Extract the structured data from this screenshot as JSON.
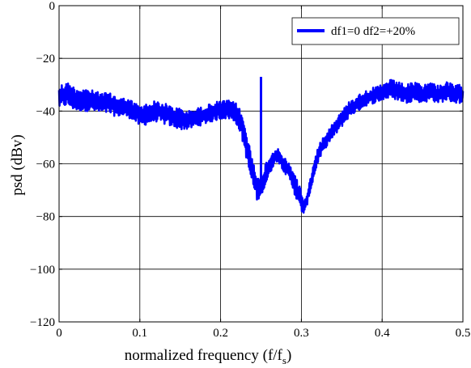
{
  "chart_data": {
    "type": "line",
    "xlabel": "normalized frequency (f/f",
    "xlabel_sub": "s",
    "xlabel_close": ")",
    "ylabel": "psd (dBv)",
    "xlim": [
      0,
      0.5
    ],
    "ylim": [
      -120,
      0
    ],
    "grid": true,
    "legend_position": "top-right",
    "xticks": [
      0,
      0.1,
      0.2,
      0.3,
      0.4,
      0.5
    ],
    "xtick_labels": [
      "0",
      "0.1",
      "0.2",
      "0.3",
      "0.4",
      "0.5"
    ],
    "yticks": [
      0,
      -20,
      -40,
      -60,
      -80,
      -100,
      -120
    ],
    "ytick_labels": [
      "0",
      "−20",
      "−40",
      "−60",
      "−80",
      "−100",
      "−120"
    ],
    "series": [
      {
        "name": "df1=0 df2=+20%",
        "color": "#0000ff",
        "envelope_x": [
          0,
          0.01,
          0.02,
          0.03,
          0.04,
          0.05,
          0.06,
          0.07,
          0.08,
          0.09,
          0.1,
          0.11,
          0.12,
          0.13,
          0.14,
          0.15,
          0.16,
          0.17,
          0.18,
          0.19,
          0.2,
          0.21,
          0.22,
          0.225,
          0.23,
          0.235,
          0.24,
          0.245,
          0.248,
          0.25,
          0.252,
          0.255,
          0.26,
          0.265,
          0.27,
          0.275,
          0.28,
          0.285,
          0.29,
          0.295,
          0.3,
          0.303,
          0.306,
          0.31,
          0.315,
          0.32,
          0.33,
          0.34,
          0.35,
          0.36,
          0.37,
          0.38,
          0.39,
          0.4,
          0.41,
          0.42,
          0.43,
          0.44,
          0.45,
          0.46,
          0.47,
          0.48,
          0.49,
          0.5
        ],
        "envelope_upper": [
          -30,
          -29,
          -31,
          -31,
          -32,
          -33,
          -33,
          -34,
          -35,
          -36,
          -38,
          -37,
          -36,
          -37,
          -38,
          -39,
          -40,
          -39,
          -38,
          -37,
          -36,
          -36,
          -37,
          -40,
          -45,
          -52,
          -58,
          -63,
          -66,
          -68,
          -63,
          -60,
          -57,
          -55,
          -54,
          -56,
          -58,
          -60,
          -62,
          -66,
          -70,
          -74,
          -72,
          -67,
          -60,
          -54,
          -48,
          -44,
          -40,
          -36,
          -34,
          -32,
          -31,
          -30,
          -28,
          -29,
          -30,
          -29,
          -30,
          -29,
          -30,
          -29,
          -30,
          -30
        ],
        "envelope_lower": [
          -39,
          -38,
          -40,
          -40,
          -40,
          -41,
          -41,
          -42,
          -42,
          -43,
          -46,
          -45,
          -44,
          -45,
          -46,
          -47,
          -47,
          -46,
          -45,
          -44,
          -43,
          -43,
          -45,
          -49,
          -55,
          -63,
          -69,
          -74,
          -75,
          -70,
          -71,
          -69,
          -65,
          -61,
          -59,
          -61,
          -64,
          -66,
          -70,
          -75,
          -78,
          -80,
          -77,
          -72,
          -66,
          -60,
          -54,
          -50,
          -46,
          -42,
          -40,
          -38,
          -37,
          -36,
          -35,
          -36,
          -37,
          -36,
          -37,
          -36,
          -37,
          -36,
          -37,
          -37
        ],
        "spike": {
          "x": 0.25,
          "y": -27
        }
      }
    ]
  }
}
